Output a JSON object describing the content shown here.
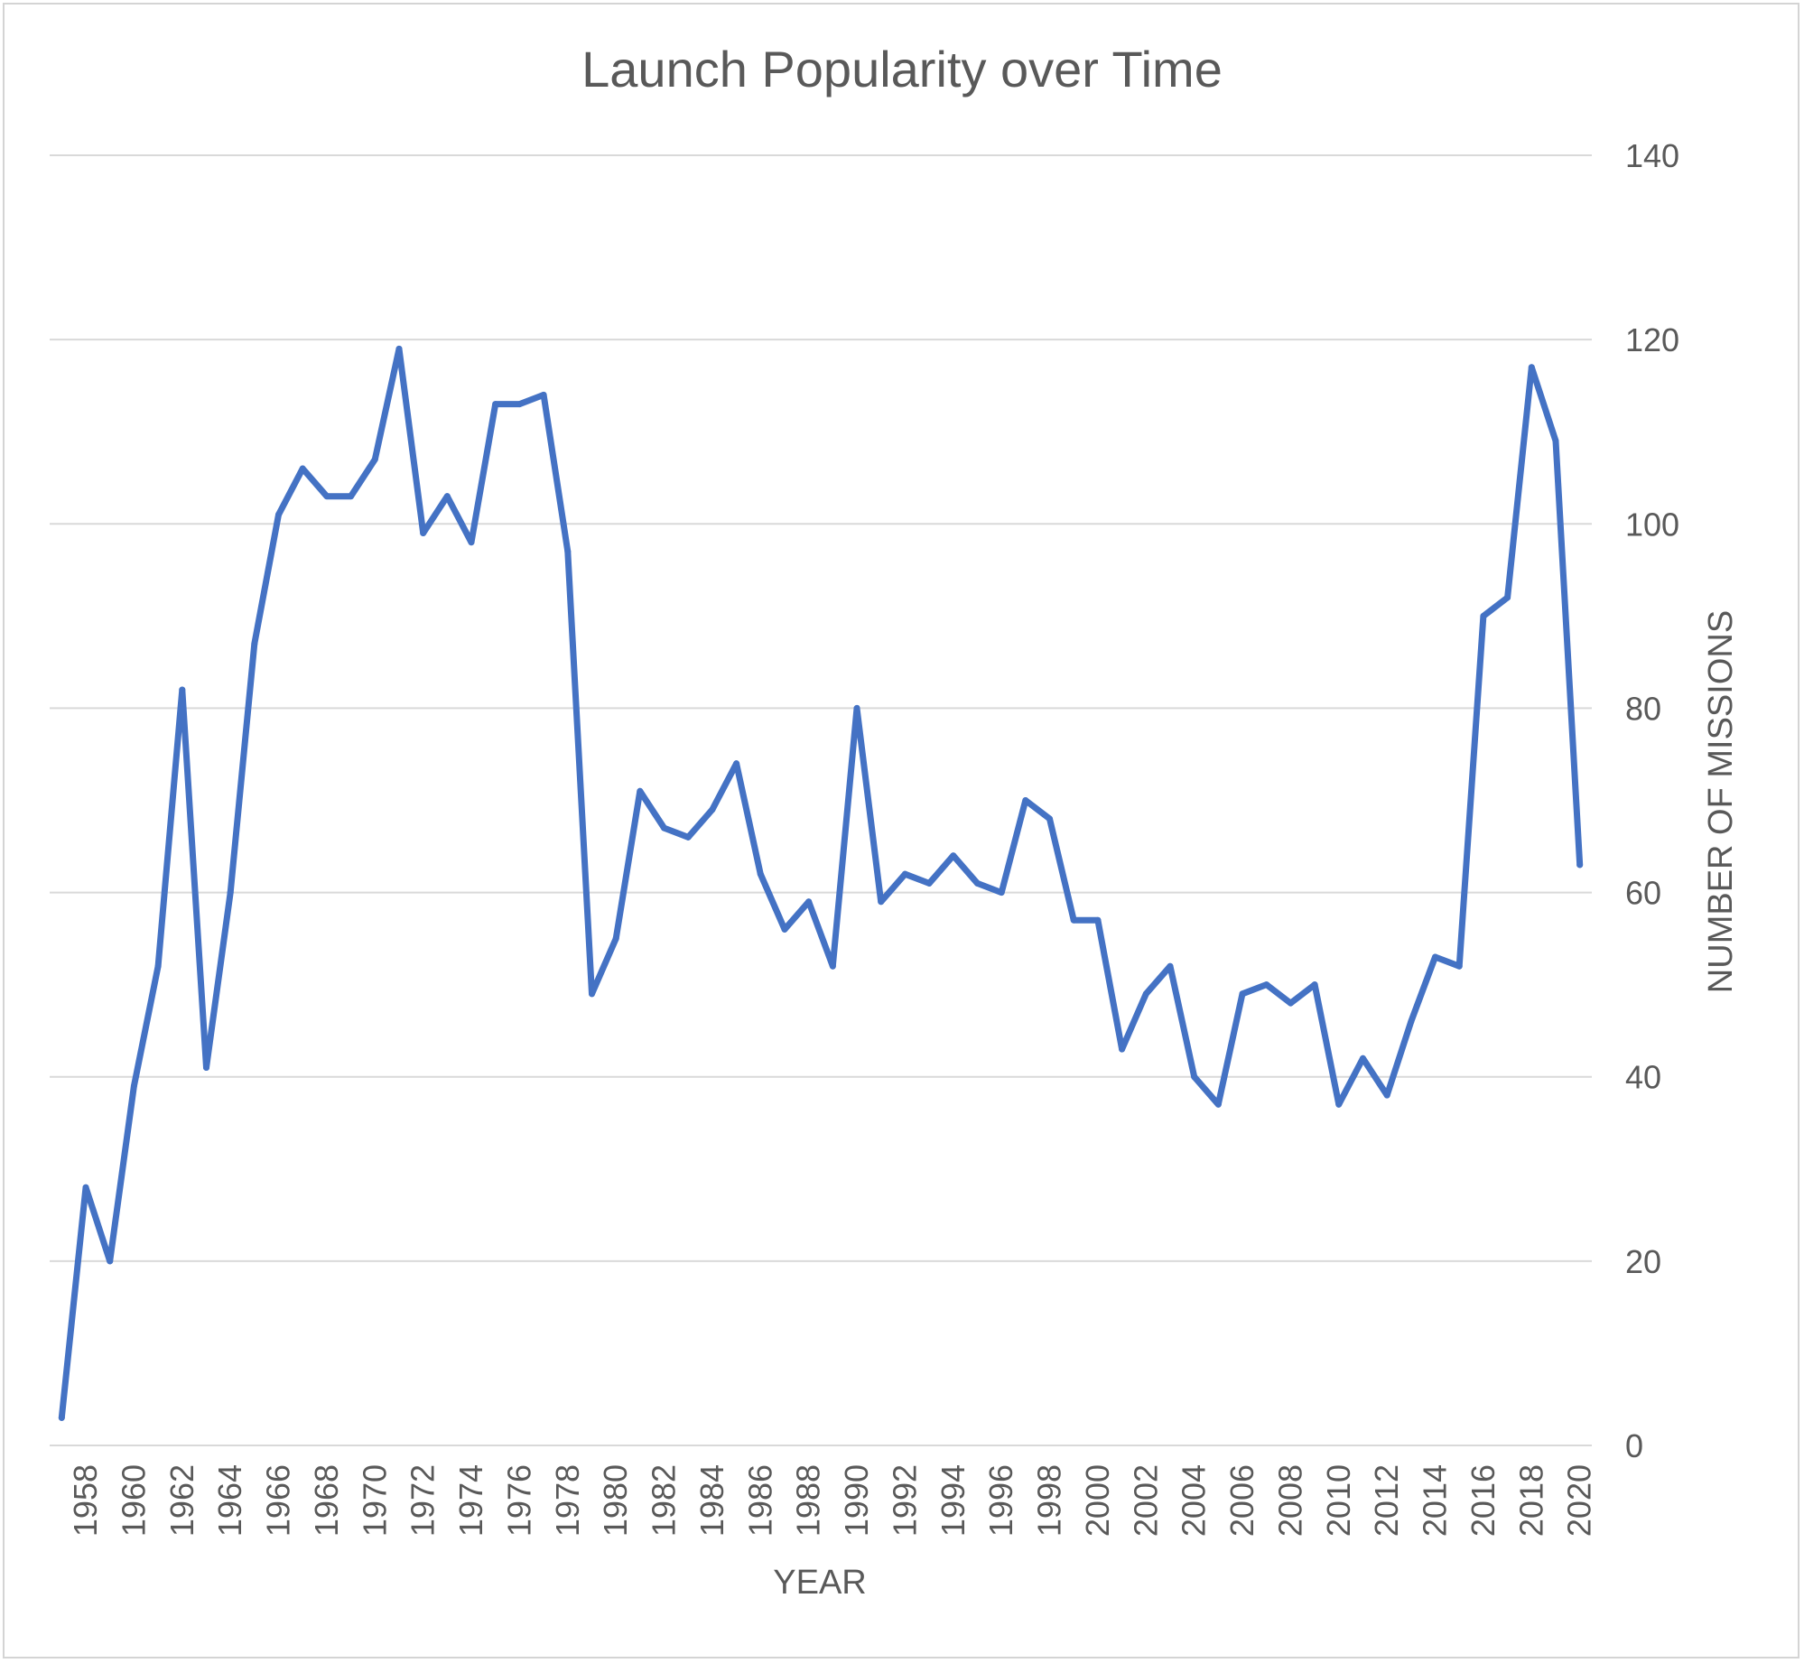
{
  "chart_data": {
    "type": "line",
    "title": "Launch Popularity over Time",
    "xlabel": "YEAR",
    "ylabel": "NUMBER OF MISSIONS",
    "ylim": [
      0,
      140
    ],
    "yticks": [
      0,
      20,
      40,
      60,
      80,
      100,
      120,
      140
    ],
    "xtick_labels": [
      "1958",
      "1960",
      "1962",
      "1964",
      "1966",
      "1968",
      "1970",
      "1972",
      "1974",
      "1976",
      "1978",
      "1980",
      "1982",
      "1984",
      "1986",
      "1988",
      "1990",
      "1992",
      "1994",
      "1996",
      "1998",
      "2000",
      "2002",
      "2004",
      "2006",
      "2008",
      "2010",
      "2012",
      "2014",
      "2016",
      "2018",
      "2020"
    ],
    "y_axis_side": "right",
    "grid": true,
    "legend": "none",
    "colors": {
      "line": "#4472C4",
      "grid": "#d9d9d9",
      "text": "#595959"
    },
    "series": [
      {
        "x": [
          1957,
          1958,
          1959,
          1960,
          1961,
          1962,
          1963,
          1964,
          1965,
          1966,
          1967,
          1968,
          1969,
          1970,
          1971,
          1972,
          1973,
          1974,
          1975,
          1976,
          1977,
          1978,
          1979,
          1980,
          1981,
          1982,
          1983,
          1984,
          1985,
          1986,
          1987,
          1988,
          1989,
          1990,
          1991,
          1992,
          1993,
          1994,
          1995,
          1996,
          1997,
          1998,
          1999,
          2000,
          2001,
          2002,
          2003,
          2004,
          2005,
          2006,
          2007,
          2008,
          2009,
          2010,
          2011,
          2012,
          2013,
          2014,
          2015,
          2016,
          2017,
          2018,
          2019,
          2020
        ],
        "values": [
          3,
          28,
          20,
          39,
          52,
          82,
          41,
          60,
          87,
          101,
          106,
          103,
          103,
          107,
          119,
          99,
          103,
          98,
          113,
          113,
          114,
          97,
          49,
          55,
          71,
          67,
          66,
          69,
          74,
          62,
          56,
          59,
          52,
          80,
          59,
          62,
          61,
          64,
          61,
          60,
          70,
          68,
          57,
          57,
          43,
          49,
          52,
          40,
          37,
          49,
          50,
          48,
          50,
          37,
          42,
          38,
          46,
          53,
          52,
          90,
          92,
          117,
          109,
          63
        ]
      }
    ]
  }
}
